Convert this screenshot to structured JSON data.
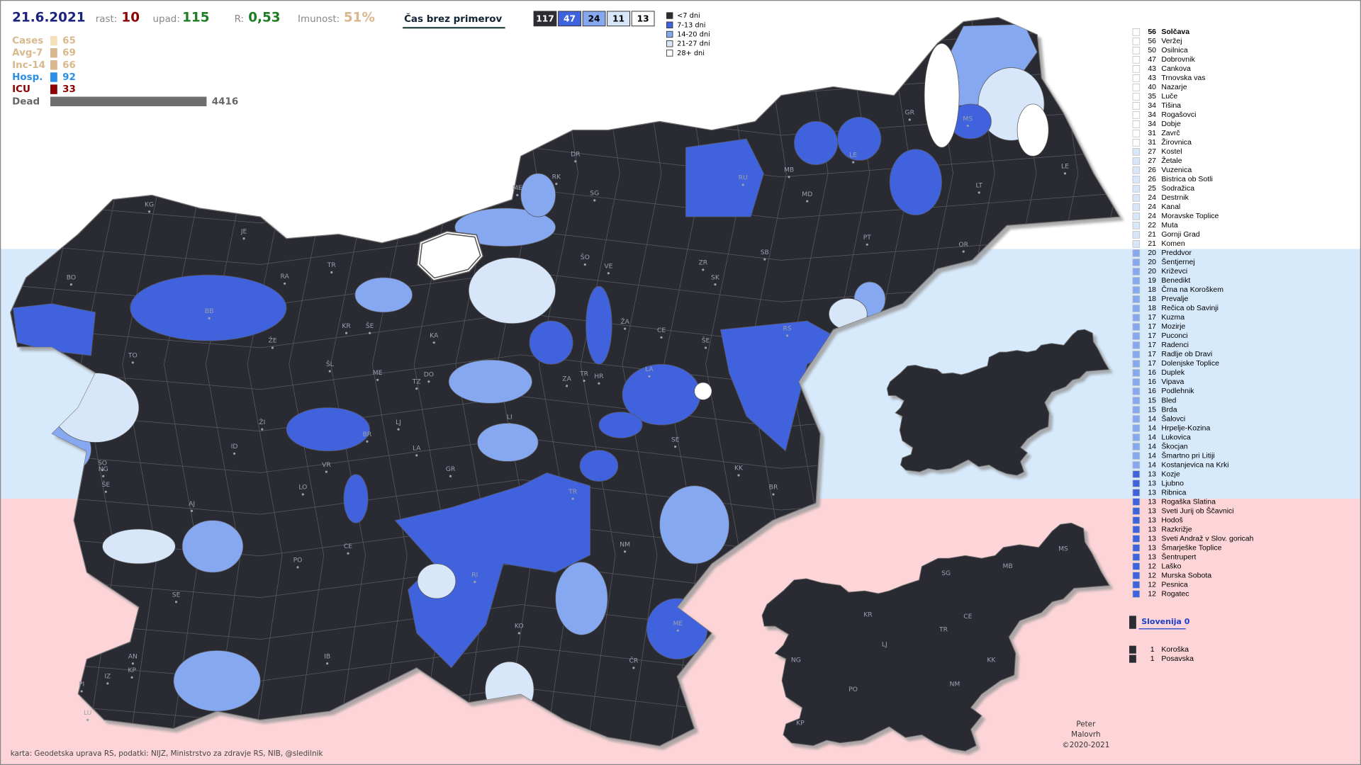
{
  "header": {
    "date": "21.6.2021",
    "growth_label": "rast:",
    "growth": "10",
    "decline_label": "upad:",
    "decline": "115",
    "r_label": "R:",
    "r": "0,53",
    "immunity_label": "Imunost:",
    "immunity": "51%",
    "view_button": "Čas brez primerov"
  },
  "summary_boxes": [
    {
      "value": 117,
      "color": "#2c2c33"
    },
    {
      "value": 47,
      "color": "#3f63dd"
    },
    {
      "value": 24,
      "color": "#86a8f0"
    },
    {
      "value": 11,
      "color": "#d8e6fa"
    },
    {
      "value": 13,
      "color": "#ffffff"
    }
  ],
  "legend": [
    {
      "label": "<7 dni",
      "color": "#2c2c33"
    },
    {
      "label": "7-13 dni",
      "color": "#3f63dd"
    },
    {
      "label": "14-20 dni",
      "color": "#86a8f0"
    },
    {
      "label": "21-27 dni",
      "color": "#d8e6fa"
    },
    {
      "label": "28+ dni",
      "color": "#ffffff"
    }
  ],
  "stats": [
    {
      "name": "Cases",
      "value": 65,
      "color": "#d8b88c",
      "bar": "#f5dfb8"
    },
    {
      "name": "Avg-7",
      "value": 69,
      "color": "#d8b88c",
      "bar": "#d8b88c"
    },
    {
      "name": "Inc-14",
      "value": 66,
      "color": "#d8b88c",
      "bar": "#d8b88c"
    },
    {
      "name": "Hosp.",
      "value": 92,
      "color": "#2a8ee8",
      "bar": "#2a8ee8"
    },
    {
      "name": "ICU",
      "value": 33,
      "color": "#8b0000",
      "bar": "#8b0000"
    },
    {
      "name": "Dead",
      "value": 4416,
      "color": "#666666",
      "bar": "#6e6e6e"
    }
  ],
  "ranking": [
    {
      "days": 56,
      "name": "Solčava",
      "color": "#ffffff"
    },
    {
      "days": 56,
      "name": "Veržej",
      "color": "#ffffff"
    },
    {
      "days": 50,
      "name": "Osilnica",
      "color": "#ffffff"
    },
    {
      "days": 47,
      "name": "Dobrovnik",
      "color": "#ffffff"
    },
    {
      "days": 43,
      "name": "Cankova",
      "color": "#ffffff"
    },
    {
      "days": 43,
      "name": "Trnovska vas",
      "color": "#ffffff"
    },
    {
      "days": 40,
      "name": "Nazarje",
      "color": "#ffffff"
    },
    {
      "days": 35,
      "name": "Luče",
      "color": "#ffffff"
    },
    {
      "days": 34,
      "name": "Tišina",
      "color": "#ffffff"
    },
    {
      "days": 34,
      "name": "Rogašovci",
      "color": "#ffffff"
    },
    {
      "days": 34,
      "name": "Dobje",
      "color": "#ffffff"
    },
    {
      "days": 31,
      "name": "Zavrč",
      "color": "#ffffff"
    },
    {
      "days": 31,
      "name": "Žirovnica",
      "color": "#ffffff"
    },
    {
      "days": 27,
      "name": "Kostel",
      "color": "#d8e6fa"
    },
    {
      "days": 27,
      "name": "Žetale",
      "color": "#d8e6fa"
    },
    {
      "days": 26,
      "name": "Vuzenica",
      "color": "#d8e6fa"
    },
    {
      "days": 26,
      "name": "Bistrica ob Sotli",
      "color": "#d8e6fa"
    },
    {
      "days": 25,
      "name": "Sodražica",
      "color": "#d8e6fa"
    },
    {
      "days": 24,
      "name": "Destrnik",
      "color": "#d8e6fa"
    },
    {
      "days": 24,
      "name": "Kanal",
      "color": "#d8e6fa"
    },
    {
      "days": 24,
      "name": "Moravske Toplice",
      "color": "#d8e6fa"
    },
    {
      "days": 22,
      "name": "Muta",
      "color": "#d8e6fa"
    },
    {
      "days": 21,
      "name": "Gornji Grad",
      "color": "#d8e6fa"
    },
    {
      "days": 21,
      "name": "Komen",
      "color": "#d8e6fa"
    },
    {
      "days": 20,
      "name": "Preddvor",
      "color": "#86a8f0"
    },
    {
      "days": 20,
      "name": "Šentjernej",
      "color": "#86a8f0"
    },
    {
      "days": 20,
      "name": "Križevci",
      "color": "#86a8f0"
    },
    {
      "days": 19,
      "name": "Benedikt",
      "color": "#86a8f0"
    },
    {
      "days": 18,
      "name": "Črna na Koroškem",
      "color": "#86a8f0"
    },
    {
      "days": 18,
      "name": "Prevalje",
      "color": "#86a8f0"
    },
    {
      "days": 18,
      "name": "Rečica ob Savinji",
      "color": "#86a8f0"
    },
    {
      "days": 17,
      "name": "Kuzma",
      "color": "#86a8f0"
    },
    {
      "days": 17,
      "name": "Mozirje",
      "color": "#86a8f0"
    },
    {
      "days": 17,
      "name": "Puconci",
      "color": "#86a8f0"
    },
    {
      "days": 17,
      "name": "Radenci",
      "color": "#86a8f0"
    },
    {
      "days": 17,
      "name": "Radlje ob Dravi",
      "color": "#86a8f0"
    },
    {
      "days": 17,
      "name": "Dolenjske Toplice",
      "color": "#86a8f0"
    },
    {
      "days": 16,
      "name": "Duplek",
      "color": "#86a8f0"
    },
    {
      "days": 16,
      "name": "Vipava",
      "color": "#86a8f0"
    },
    {
      "days": 16,
      "name": "Podlehnik",
      "color": "#86a8f0"
    },
    {
      "days": 15,
      "name": "Bled",
      "color": "#86a8f0"
    },
    {
      "days": 15,
      "name": "Brda",
      "color": "#86a8f0"
    },
    {
      "days": 14,
      "name": "Šalovci",
      "color": "#86a8f0"
    },
    {
      "days": 14,
      "name": "Hrpelje-Kozina",
      "color": "#86a8f0"
    },
    {
      "days": 14,
      "name": "Lukovica",
      "color": "#86a8f0"
    },
    {
      "days": 14,
      "name": "Škocjan",
      "color": "#86a8f0"
    },
    {
      "days": 14,
      "name": "Šmartno pri Litiji",
      "color": "#86a8f0"
    },
    {
      "days": 14,
      "name": "Kostanjevica na Krki",
      "color": "#86a8f0"
    },
    {
      "days": 13,
      "name": "Kozje",
      "color": "#3f63dd"
    },
    {
      "days": 13,
      "name": "Ljubno",
      "color": "#3f63dd"
    },
    {
      "days": 13,
      "name": "Ribnica",
      "color": "#3f63dd"
    },
    {
      "days": 13,
      "name": "Rogaška Slatina",
      "color": "#3f63dd"
    },
    {
      "days": 13,
      "name": "Sveti Jurij ob Ščavnici",
      "color": "#3f63dd"
    },
    {
      "days": 13,
      "name": "Hodoš",
      "color": "#3f63dd"
    },
    {
      "days": 13,
      "name": "Razkrižje",
      "color": "#3f63dd"
    },
    {
      "days": 13,
      "name": "Sveti Andraž v Slov. goricah",
      "color": "#3f63dd"
    },
    {
      "days": 13,
      "name": "Šmarješke Toplice",
      "color": "#3f63dd"
    },
    {
      "days": 13,
      "name": "Šentrupert",
      "color": "#3f63dd"
    },
    {
      "days": 12,
      "name": "Laško",
      "color": "#3f63dd"
    },
    {
      "days": 12,
      "name": "Murska Sobota",
      "color": "#3f63dd"
    },
    {
      "days": 12,
      "name": "Pesnica",
      "color": "#3f63dd"
    },
    {
      "days": 12,
      "name": "Rogatec",
      "color": "#3f63dd"
    }
  ],
  "country_button": "Slovenija 0",
  "regions": [
    {
      "days": 1,
      "name": "Koroška"
    },
    {
      "days": 1,
      "name": "Posavska"
    }
  ],
  "map_labels": [
    "KG",
    "JE",
    "BO",
    "RA",
    "TR",
    "BB",
    "KR",
    "ŠE",
    "ŽE",
    "TO",
    "ŠL",
    "ME",
    "DO",
    "TZ",
    "KA",
    "ŠO",
    "VE",
    "ŽA",
    "CE",
    "ŠE",
    "LA",
    "ZA",
    "TR",
    "HR",
    "LI",
    "LJ",
    "ŽI",
    "ID",
    "BR",
    "LA",
    "VR",
    "LO",
    "GR",
    "SE",
    "KK",
    "BR",
    "AJ",
    "SO",
    "NG",
    "ŠE",
    "PO",
    "CE",
    "RI",
    "TR",
    "NM",
    "ME",
    "KO",
    "ČR",
    "SE",
    "IB",
    "AN",
    "KP",
    "IZ",
    "PI",
    "LU",
    "DR",
    "ME",
    "RK",
    "SG",
    "RU",
    "MD",
    "MB",
    "LE",
    "MS",
    "GR",
    "LT",
    "LE",
    "PT",
    "OR",
    "SB",
    "ZR",
    "SK",
    "RS"
  ],
  "region_map_labels": [
    "SG",
    "MB",
    "MS",
    "KR",
    "LJ",
    "TR",
    "CE",
    "NG",
    "KK",
    "PO",
    "NM",
    "KP"
  ],
  "credits": {
    "source": "karta: Geodetska uprava RS,  podatki: NIJZ, Ministrstvo za zdravje RS, NIB, @sledilnik",
    "author_1": "Peter",
    "author_2": "Malovrh",
    "copyright": "©2020-2021"
  }
}
